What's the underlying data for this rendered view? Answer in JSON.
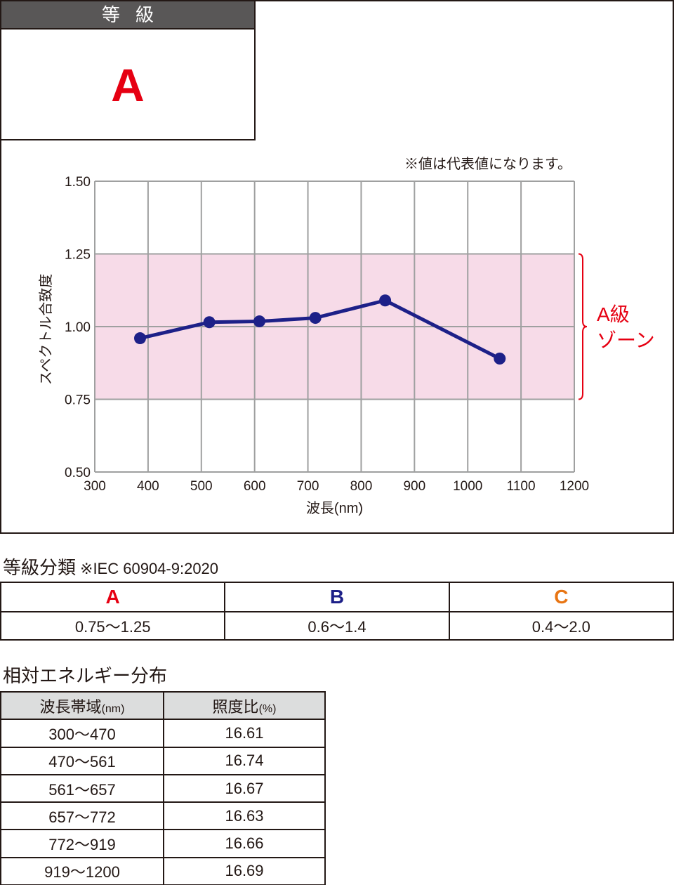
{
  "grade": {
    "header": "等級",
    "value": "A"
  },
  "chart_note": "※値は代表値になります。",
  "zone_label_line1": "A級",
  "zone_label_line2": "ゾーン",
  "chart_data": {
    "type": "line",
    "xlabel": "波長(nm)",
    "ylabel": "スペクトル合致度",
    "xlim": [
      300,
      1200
    ],
    "ylim": [
      0.5,
      1.5
    ],
    "x_ticks": [
      "300",
      "400",
      "500",
      "600",
      "700",
      "800",
      "900",
      "1000",
      "1100",
      "1200"
    ],
    "y_ticks": [
      "1.50",
      "1.25",
      "1.00",
      "0.75",
      "0.50"
    ],
    "grid": true,
    "band": {
      "from": 0.75,
      "to": 1.25,
      "color": "#f7dbe8"
    },
    "series_color": "#1d2088",
    "points": [
      {
        "x": 385,
        "y": 0.96
      },
      {
        "x": 515,
        "y": 1.015
      },
      {
        "x": 609,
        "y": 1.018
      },
      {
        "x": 714,
        "y": 1.03
      },
      {
        "x": 845,
        "y": 1.09
      },
      {
        "x": 1060,
        "y": 0.89
      }
    ]
  },
  "classification": {
    "title": "等級分類",
    "note": "※IEC 60904-9:2020",
    "grades": [
      {
        "label": "A",
        "range": "0.75〜1.25",
        "color": "#e60012"
      },
      {
        "label": "B",
        "range": "0.6〜1.4",
        "color": "#1d2088"
      },
      {
        "label": "C",
        "range": "0.4〜2.0",
        "color": "#e87513"
      }
    ]
  },
  "distribution": {
    "title": "相対エネルギー分布",
    "col1_header": "波長帯域",
    "col1_unit": "(nm)",
    "col2_header": "照度比",
    "col2_unit": "(%)",
    "rows": [
      {
        "band": "300〜470",
        "ratio": "16.61"
      },
      {
        "band": "470〜561",
        "ratio": "16.74"
      },
      {
        "band": "561〜657",
        "ratio": "16.67"
      },
      {
        "band": "657〜772",
        "ratio": "16.63"
      },
      {
        "band": "772〜919",
        "ratio": "16.66"
      },
      {
        "band": "919〜1200",
        "ratio": "16.69"
      }
    ]
  }
}
